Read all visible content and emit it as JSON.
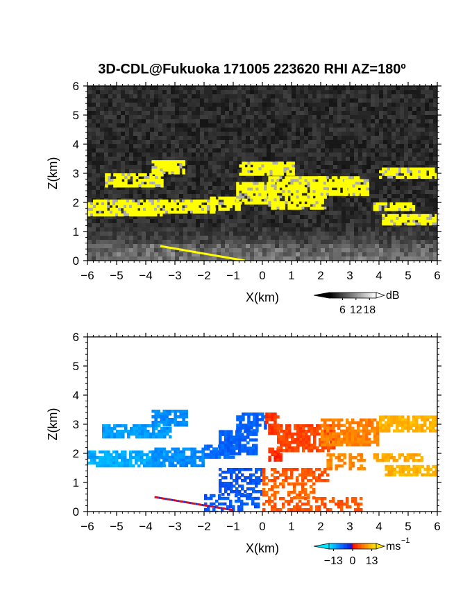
{
  "title": "3D-CDL@Fukuoka 171005 223620 RHI AZ=180º",
  "chart_data": [
    {
      "type": "heatmap",
      "name": "Backscatter intensity RHI",
      "xlabel": "X(km)",
      "ylabel": "Z(km)",
      "xlim": [
        -6,
        6
      ],
      "ylim": [
        0,
        6
      ],
      "xticks": [
        "−6",
        "−5",
        "−4",
        "−3",
        "−2",
        "−1",
        "0",
        "1",
        "2",
        "3",
        "4",
        "5",
        "6"
      ],
      "yticks": [
        "0",
        "1",
        "2",
        "3",
        "4",
        "5",
        "6"
      ],
      "colorbar": {
        "unit": "dB",
        "ticks": [
          "6",
          "12",
          "18"
        ],
        "tick_values": [
          6,
          12,
          18
        ],
        "range": [
          0,
          21
        ]
      },
      "cloud_layer_regions": [
        {
          "xmin": -6.0,
          "xmax": -3.5,
          "zmin": 1.6,
          "zmax": 2.1
        },
        {
          "xmin": -5.4,
          "xmax": -3.4,
          "zmin": 2.6,
          "zmax": 3.0
        },
        {
          "xmin": -3.8,
          "xmax": -2.7,
          "zmin": 3.0,
          "zmax": 3.45
        },
        {
          "xmin": -4.0,
          "xmax": -1.7,
          "zmin": 1.65,
          "zmax": 2.1
        },
        {
          "xmin": -1.8,
          "xmax": -0.8,
          "zmin": 1.8,
          "zmax": 2.2
        },
        {
          "xmin": -0.9,
          "xmax": 0.4,
          "zmin": 2.0,
          "zmax": 2.7
        },
        {
          "xmin": -0.8,
          "xmax": 1.1,
          "zmin": 3.0,
          "zmax": 3.4
        },
        {
          "xmin": 0.2,
          "xmax": 2.2,
          "zmin": 1.8,
          "zmax": 2.9
        },
        {
          "xmin": 1.9,
          "xmax": 3.3,
          "zmin": 2.3,
          "zmax": 2.9
        },
        {
          "xmin": 2.8,
          "xmax": 3.6,
          "zmin": 2.3,
          "zmax": 2.8
        },
        {
          "xmin": 4.0,
          "xmax": 6.0,
          "zmin": 2.9,
          "zmax": 3.2
        },
        {
          "xmin": 3.8,
          "xmax": 5.2,
          "zmin": 1.8,
          "zmax": 2.0
        },
        {
          "xmin": 4.1,
          "xmax": 6.0,
          "zmin": 1.3,
          "zmax": 1.6
        }
      ],
      "ground_streak": {
        "x": [
          -3.5,
          -0.6
        ],
        "z": [
          0.5,
          0.0
        ]
      }
    },
    {
      "type": "heatmap",
      "name": "Doppler radial velocity RHI",
      "xlabel": "X(km)",
      "ylabel": "Z(km)",
      "xlim": [
        -6,
        6
      ],
      "ylim": [
        0,
        6
      ],
      "xticks": [
        "−6",
        "−5",
        "−4",
        "−3",
        "−2",
        "−1",
        "0",
        "1",
        "2",
        "3",
        "4",
        "5",
        "6"
      ],
      "yticks": [
        "0",
        "1",
        "2",
        "3",
        "4",
        "5",
        "6"
      ],
      "colorbar": {
        "unit": "ms",
        "unit_exp": "−1",
        "ticks": [
          "−13",
          "0",
          "13"
        ],
        "tick_values": [
          -13,
          0,
          13
        ],
        "range": [
          -16,
          16
        ]
      },
      "velocity_regions": [
        {
          "xmin": -6.0,
          "xmax": -3.4,
          "zmin": 1.6,
          "zmax": 2.1,
          "v": -12
        },
        {
          "xmin": -5.5,
          "xmax": -3.2,
          "zmin": 2.55,
          "zmax": 3.0,
          "v": -11
        },
        {
          "xmin": -3.8,
          "xmax": -2.6,
          "zmin": 3.0,
          "zmax": 3.5,
          "v": -10
        },
        {
          "xmin": -3.8,
          "xmax": -2.0,
          "zmin": 1.6,
          "zmax": 2.2,
          "v": -10
        },
        {
          "xmin": -2.0,
          "xmax": -1.0,
          "zmin": 1.9,
          "zmax": 2.3,
          "v": -8
        },
        {
          "xmin": -1.5,
          "xmax": -0.2,
          "zmin": 2.0,
          "zmax": 2.8,
          "v": -7
        },
        {
          "xmin": -0.9,
          "xmax": 0.1,
          "zmin": 2.8,
          "zmax": 3.4,
          "v": -7
        },
        {
          "xmin": -2.0,
          "xmax": -0.1,
          "zmin": 0.0,
          "zmax": 0.6,
          "v": -6
        },
        {
          "xmin": -1.5,
          "xmax": 0.0,
          "zmin": 0.6,
          "zmax": 1.5,
          "v": -6
        },
        {
          "xmin": 0.1,
          "xmax": 0.5,
          "zmin": 2.7,
          "zmax": 3.4,
          "v": 3
        },
        {
          "xmin": 0.2,
          "xmax": 0.6,
          "zmin": 1.8,
          "zmax": 2.2,
          "v": 2
        },
        {
          "xmin": 0.5,
          "xmax": 2.5,
          "zmin": 2.1,
          "zmax": 3.0,
          "v": 4
        },
        {
          "xmin": 0.0,
          "xmax": 2.2,
          "zmin": 1.1,
          "zmax": 1.5,
          "v": 5
        },
        {
          "xmin": 0.0,
          "xmax": 3.4,
          "zmin": 0.0,
          "zmax": 0.5,
          "v": 5
        },
        {
          "xmin": 0.0,
          "xmax": 1.8,
          "zmin": 0.5,
          "zmax": 1.0,
          "v": 6
        },
        {
          "xmin": 2.0,
          "xmax": 4.0,
          "zmin": 2.3,
          "zmax": 3.2,
          "v": 8
        },
        {
          "xmin": 2.2,
          "xmax": 3.5,
          "zmin": 1.5,
          "zmax": 2.0,
          "v": 8
        },
        {
          "xmin": 4.0,
          "xmax": 6.0,
          "zmin": 2.8,
          "zmax": 3.3,
          "v": 12
        },
        {
          "xmin": 4.2,
          "xmax": 6.0,
          "zmin": 1.3,
          "zmax": 1.6,
          "v": 12
        },
        {
          "xmin": 3.8,
          "xmax": 5.5,
          "zmin": 1.8,
          "zmax": 2.0,
          "v": 11
        }
      ],
      "ground_streak": {
        "x": [
          -3.7,
          -1.0
        ],
        "z": [
          0.5,
          0.05
        ]
      }
    }
  ],
  "colors": {
    "cloud": "#ffff00",
    "bg_noise_dark": "#151515",
    "bg_noise_light": "#606060"
  }
}
